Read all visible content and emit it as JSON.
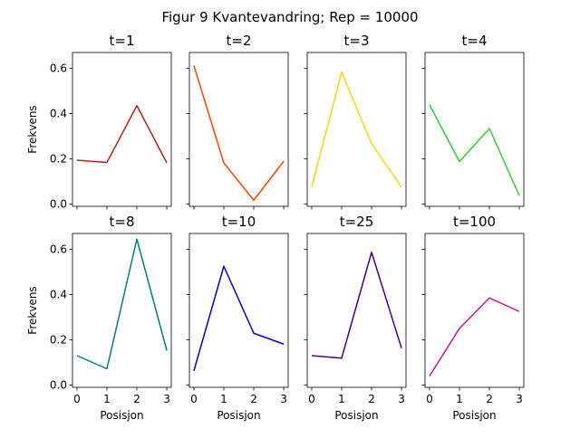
{
  "figure": {
    "title": "Figur 9 Kvantevandring; Rep = 10000"
  },
  "chart_data": [
    {
      "type": "line",
      "title": "t=1",
      "x": [
        0,
        1,
        2,
        3
      ],
      "y": [
        0.194,
        0.184,
        0.435,
        0.182
      ],
      "color": "#b22222",
      "ylabel": "Frekvens",
      "xlabel": "",
      "ylim": [
        -0.01,
        0.67
      ],
      "xticks": [
        "0",
        "1",
        "2",
        "3"
      ],
      "yticks": [
        "0.0",
        "0.2",
        "0.4",
        "0.6"
      ]
    },
    {
      "type": "line",
      "title": "t=2",
      "x": [
        0,
        1,
        2,
        3
      ],
      "y": [
        0.612,
        0.182,
        0.017,
        0.189
      ],
      "color": "#ff4500",
      "ylabel": "",
      "xlabel": "",
      "ylim": [
        -0.01,
        0.67
      ],
      "xticks": [
        "0",
        "1",
        "2",
        "3"
      ],
      "yticks": [
        "0.0",
        "0.2",
        "0.4",
        "0.6"
      ]
    },
    {
      "type": "line",
      "title": "t=3",
      "x": [
        0,
        1,
        2,
        3
      ],
      "y": [
        0.075,
        0.583,
        0.267,
        0.075
      ],
      "color": "#ffd700",
      "ylabel": "",
      "xlabel": "",
      "ylim": [
        -0.01,
        0.67
      ],
      "xticks": [
        "0",
        "1",
        "2",
        "3"
      ],
      "yticks": [
        "0.0",
        "0.2",
        "0.4",
        "0.6"
      ]
    },
    {
      "type": "line",
      "title": "t=4",
      "x": [
        0,
        1,
        2,
        3
      ],
      "y": [
        0.439,
        0.188,
        0.334,
        0.037
      ],
      "color": "#32cd32",
      "ylabel": "",
      "xlabel": "",
      "ylim": [
        -0.01,
        0.67
      ],
      "xticks": [
        "0",
        "1",
        "2",
        "3"
      ],
      "yticks": [
        "0.0",
        "0.2",
        "0.4",
        "0.6"
      ]
    },
    {
      "type": "line",
      "title": "t=8",
      "x": [
        0,
        1,
        2,
        3
      ],
      "y": [
        0.13,
        0.072,
        0.645,
        0.153
      ],
      "color": "#008080",
      "ylabel": "Frekvens",
      "xlabel": "Posisjon",
      "ylim": [
        -0.01,
        0.67
      ],
      "xticks": [
        "0",
        "1",
        "2",
        "3"
      ],
      "yticks": [
        "0.0",
        "0.2",
        "0.4",
        "0.6"
      ]
    },
    {
      "type": "line",
      "title": "t=10",
      "x": [
        0,
        1,
        2,
        3
      ],
      "y": [
        0.063,
        0.525,
        0.229,
        0.181
      ],
      "color": "#0000cd",
      "ylabel": "",
      "xlabel": "Posisjon",
      "ylim": [
        -0.01,
        0.67
      ],
      "xticks": [
        "0",
        "1",
        "2",
        "3"
      ],
      "yticks": [
        "0.0",
        "0.2",
        "0.4",
        "0.6"
      ]
    },
    {
      "type": "line",
      "title": "t=25",
      "x": [
        0,
        1,
        2,
        3
      ],
      "y": [
        0.13,
        0.119,
        0.587,
        0.163
      ],
      "color": "#4b0082",
      "ylabel": "",
      "xlabel": "Posisjon",
      "ylim": [
        -0.01,
        0.67
      ],
      "xticks": [
        "0",
        "1",
        "2",
        "3"
      ],
      "yticks": [
        "0.0",
        "0.2",
        "0.4",
        "0.6"
      ]
    },
    {
      "type": "line",
      "title": "t=100",
      "x": [
        0,
        1,
        2,
        3
      ],
      "y": [
        0.04,
        0.25,
        0.385,
        0.325
      ],
      "color": "#c71585",
      "ylabel": "",
      "xlabel": "Posisjon",
      "ylim": [
        -0.01,
        0.67
      ],
      "xticks": [
        "0",
        "1",
        "2",
        "3"
      ],
      "yticks": [
        "0.0",
        "0.2",
        "0.4",
        "0.6"
      ]
    }
  ]
}
